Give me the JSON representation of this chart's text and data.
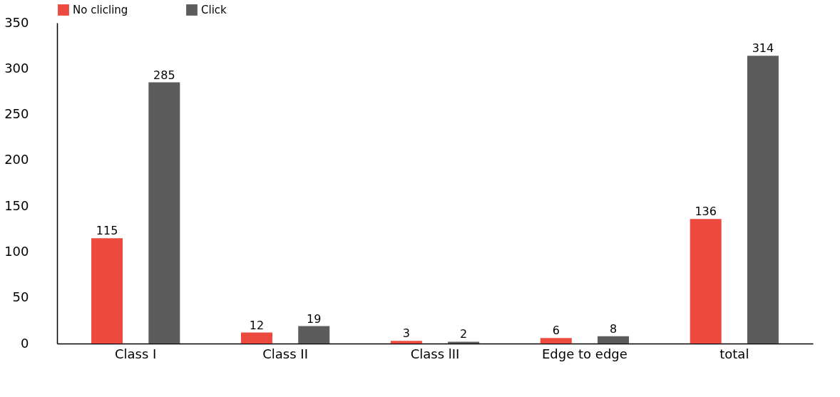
{
  "chart_data": {
    "type": "bar",
    "categories": [
      "Class I",
      "Class II",
      "Class lII",
      "Edge to edge",
      "total"
    ],
    "series": [
      {
        "name": "No clicling",
        "color": "#ec4a3e",
        "values": [
          115,
          12,
          3,
          6,
          136
        ]
      },
      {
        "name": "Click",
        "color": "#5c5c5c",
        "values": [
          285,
          19,
          2,
          8,
          314
        ]
      }
    ],
    "ylim": [
      0,
      350
    ],
    "yticks": [
      0,
      50,
      100,
      150,
      200,
      250,
      300,
      350
    ],
    "grid": false,
    "legend": "top",
    "data_labels": true
  }
}
